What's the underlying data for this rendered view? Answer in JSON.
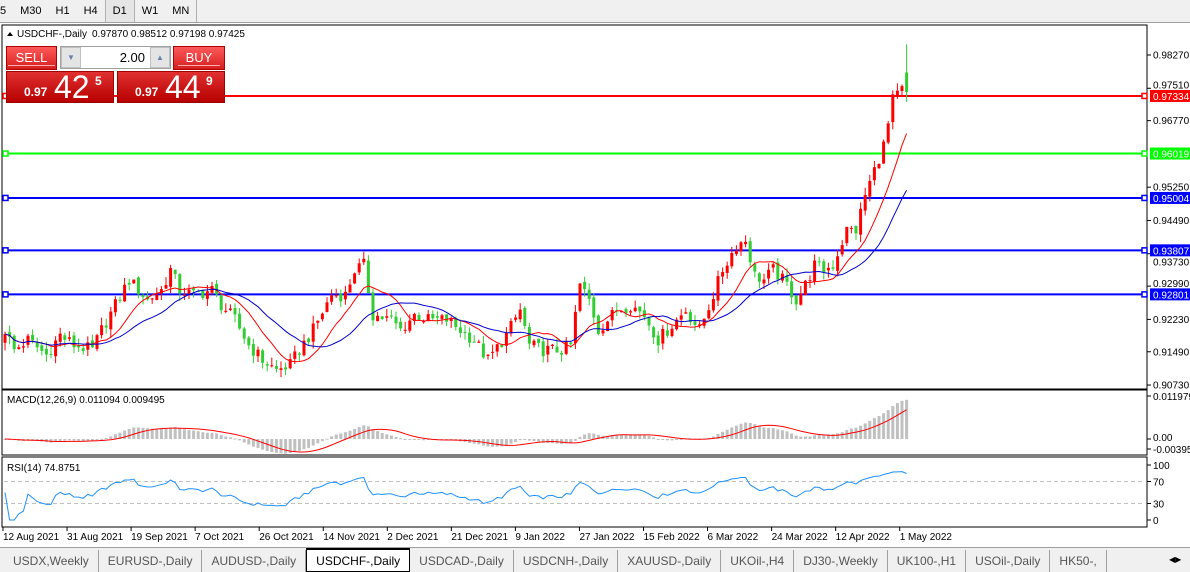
{
  "toolbar": {
    "timeframes": [
      "5",
      "M30",
      "H1",
      "H4",
      "D1",
      "W1",
      "MN"
    ],
    "active": "D1"
  },
  "chart": {
    "header": "USDCHF-,Daily",
    "ohlc_text": "0.97870 0.98512 0.97198 0.97425",
    "price_ticks": [
      "0.98270",
      "0.96770",
      "0.95250",
      "0.94490",
      "0.92990",
      "0.92230",
      "0.91490",
      "0.90730"
    ],
    "price_ticks_hidden": [
      "0.97510",
      "0.93730"
    ],
    "hlines": [
      {
        "price": "0.97334",
        "color": "#ff0000"
      },
      {
        "price": "0.96019",
        "color": "#00ff00"
      },
      {
        "price": "0.95004",
        "color": "#0000ff"
      },
      {
        "price": "0.93807",
        "color": "#0000ff"
      },
      {
        "price": "0.92801",
        "color": "#0000ff"
      }
    ],
    "colors": {
      "bull": "#ff0000",
      "bear": "#32cd32",
      "ma_fast": "#ff0000",
      "ma_slow": "#0000cc"
    },
    "date_labels": [
      "12 Aug 2021",
      "31 Aug 2021",
      "19 Sep 2021",
      "7 Oct 2021",
      "26 Oct 2021",
      "14 Nov 2021",
      "2 Dec 2021",
      "21 Dec 2021",
      "9 Jan 2022",
      "27 Jan 2022",
      "15 Feb 2022",
      "6 Mar 2022",
      "24 Mar 2022",
      "12 Apr 2022",
      "1 May 2022"
    ]
  },
  "chart_data": {
    "type": "candlestick",
    "ylim": [
      0.9073,
      0.9827
    ],
    "approx_close_path": [
      [
        0,
        0.9199
      ],
      [
        2,
        0.9153
      ],
      [
        5,
        0.9176
      ],
      [
        9,
        0.9142
      ],
      [
        12,
        0.9187
      ],
      [
        15,
        0.9164
      ],
      [
        19,
        0.9153
      ],
      [
        21,
        0.9199
      ],
      [
        24,
        0.9256
      ],
      [
        27,
        0.9313
      ],
      [
        31,
        0.9267
      ],
      [
        34,
        0.929
      ],
      [
        36,
        0.9336
      ],
      [
        38,
        0.929
      ],
      [
        41,
        0.9279
      ],
      [
        45,
        0.929
      ],
      [
        47,
        0.9256
      ],
      [
        50,
        0.9222
      ],
      [
        53,
        0.9164
      ],
      [
        56,
        0.913
      ],
      [
        59,
        0.9107
      ],
      [
        62,
        0.9119
      ],
      [
        64,
        0.9153
      ],
      [
        67,
        0.9199
      ],
      [
        71,
        0.9279
      ],
      [
        74,
        0.9279
      ],
      [
        76,
        0.9336
      ],
      [
        78,
        0.9347
      ],
      [
        80,
        0.9233
      ],
      [
        84,
        0.9222
      ],
      [
        86,
        0.9199
      ],
      [
        89,
        0.9233
      ],
      [
        92,
        0.9222
      ],
      [
        96,
        0.9222
      ],
      [
        99,
        0.9199
      ],
      [
        102,
        0.9176
      ],
      [
        105,
        0.913
      ],
      [
        109,
        0.9187
      ],
      [
        112,
        0.9244
      ],
      [
        114,
        0.9164
      ],
      [
        117,
        0.9153
      ],
      [
        121,
        0.9153
      ],
      [
        123,
        0.9164
      ],
      [
        125,
        0.9302
      ],
      [
        127,
        0.9267
      ],
      [
        129,
        0.9199
      ],
      [
        133,
        0.9244
      ],
      [
        136,
        0.9256
      ],
      [
        139,
        0.9233
      ],
      [
        142,
        0.9176
      ],
      [
        145,
        0.921
      ],
      [
        148,
        0.9244
      ],
      [
        151,
        0.9199
      ],
      [
        154,
        0.9279
      ],
      [
        156,
        0.9336
      ],
      [
        159,
        0.9393
      ],
      [
        161,
        0.9404
      ],
      [
        163,
        0.9324
      ],
      [
        165,
        0.9313
      ],
      [
        167,
        0.9336
      ],
      [
        170,
        0.9302
      ],
      [
        172,
        0.9267
      ],
      [
        174,
        0.9302
      ],
      [
        176,
        0.9347
      ],
      [
        178,
        0.9336
      ],
      [
        180,
        0.9347
      ],
      [
        183,
        0.9427
      ],
      [
        185,
        0.9427
      ],
      [
        187,
        0.9507
      ],
      [
        189,
        0.9564
      ],
      [
        191,
        0.9621
      ],
      [
        192,
        0.9667
      ],
      [
        193,
        0.9724
      ],
      [
        195,
        0.9747
      ],
      [
        196,
        0.9781
      ]
    ],
    "last_bar": {
      "open": 0.9787,
      "high": 0.98512,
      "low": 0.97198,
      "close": 0.97425
    }
  },
  "macd": {
    "label": "MACD(12,26,9) 0.011094 0.009495",
    "ticks": [
      "0.011979",
      "0.00",
      "-0.00395"
    ]
  },
  "rsi": {
    "label": "RSI(14) 74.8751",
    "ticks": [
      "100",
      "70",
      "30",
      "0"
    ]
  },
  "trade": {
    "sell": "SELL",
    "buy": "BUY",
    "lot": "2.00",
    "sell_prefix": "0.97",
    "sell_big": "42",
    "sell_sup": "5",
    "buy_prefix": "0.97",
    "buy_big": "44",
    "buy_sup": "9"
  },
  "tabs": [
    "USDX,Weekly",
    "EURUSD-,Daily",
    "AUDUSD-,Daily",
    "USDCHF-,Daily",
    "USDCAD-,Daily",
    "USDCNH-,Daily",
    "XAUUSD-,Daily",
    "UKOil-,H4",
    "DJ30-,Weekly",
    "UK100-,H1",
    "USOil-,Daily",
    "HK50-,"
  ],
  "active_tab": "USDCHF-,Daily"
}
